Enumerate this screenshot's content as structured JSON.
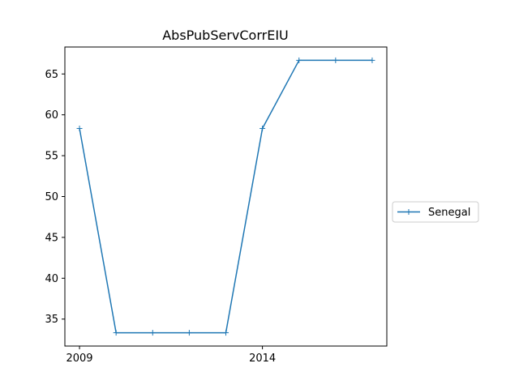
{
  "chart_data": {
    "type": "line",
    "title": "AbsPubServCorrEIU",
    "xlabel": "",
    "ylabel": "",
    "x": [
      2009,
      2010,
      2011,
      2012,
      2013,
      2014,
      2015,
      2016,
      2017
    ],
    "series": [
      {
        "name": "Senegal",
        "values": [
          58.33,
          33.33,
          33.33,
          33.33,
          33.33,
          58.33,
          66.67,
          66.67,
          66.67
        ],
        "color": "#1f77b4",
        "marker": "+"
      }
    ],
    "xticks": [
      2009,
      2014
    ],
    "yticks": [
      35,
      40,
      45,
      50,
      55,
      60,
      65
    ],
    "xlim": [
      2008.6,
      2017.4
    ],
    "ylim": [
      31.7,
      68.3
    ],
    "grid": false,
    "legend_position": "outside-right"
  }
}
